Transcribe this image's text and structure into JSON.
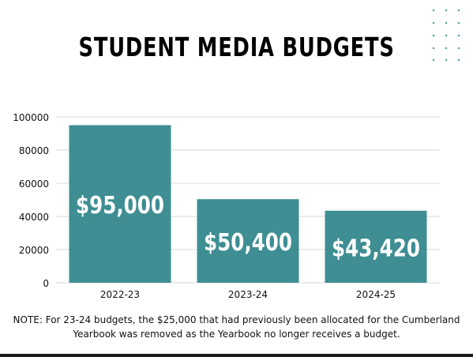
{
  "title": "STUDENT MEDIA BUDGETS",
  "note": "NOTE: For  23-24 budgets, the $25,000 that had previously been allocated for the Cumberland Yearbook was removed as the Yearbook no longer receives a budget.",
  "colors": {
    "bar": "#3e8e93",
    "grid": "#d9d9d9",
    "dots": "#5aa5ad"
  },
  "chart_data": {
    "type": "bar",
    "title": "STUDENT MEDIA BUDGETS",
    "categories": [
      "2022-23",
      "2023-24",
      "2024-25"
    ],
    "values": [
      95000,
      50400,
      43420
    ],
    "data_labels": [
      "$95,000",
      "$50,400",
      "$43,420"
    ],
    "y_ticks": [
      "0",
      "20000",
      "40000",
      "60000",
      "80000",
      "100000"
    ],
    "ylim": [
      0,
      100000
    ],
    "xlabel": "",
    "ylabel": "",
    "grid": true,
    "legend": "none"
  }
}
